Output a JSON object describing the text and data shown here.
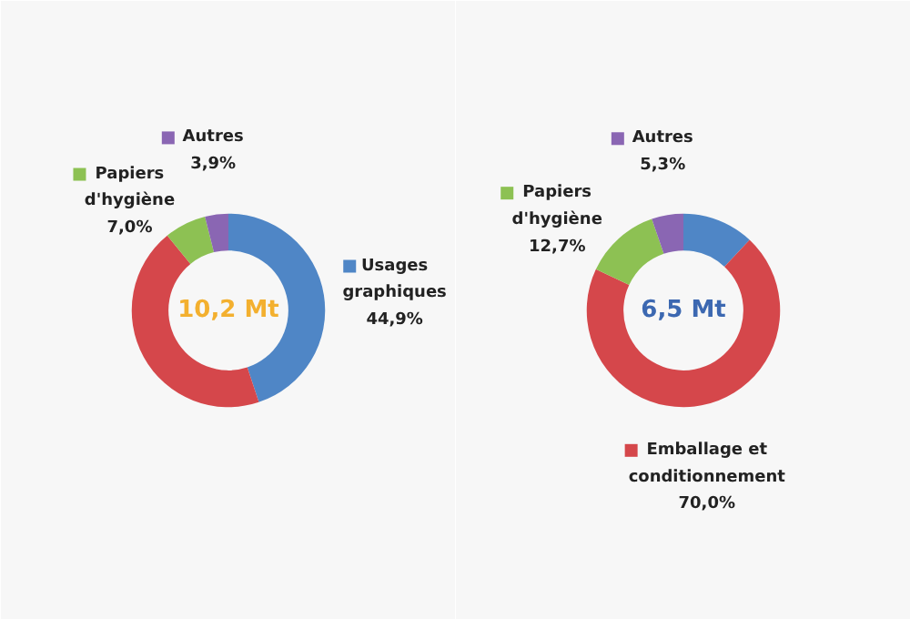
{
  "chart_data": [
    {
      "type": "donut",
      "categories": [
        "Usages graphiques",
        null,
        "Papiers d'hygiène",
        "Autres"
      ],
      "values": [
        44.9,
        44.2,
        7.0,
        3.9
      ],
      "colors": [
        "#4f86c6",
        "#d5474b",
        "#8dc153",
        "#8a66b3"
      ],
      "value_labels": [
        "44,9%",
        null,
        "7,0%",
        "3,9%"
      ],
      "annotations": [
        "10,2 Mt"
      ],
      "legend": "top"
    },
    {
      "type": "donut",
      "categories": [
        null,
        "Emballage et conditionnement",
        "Papiers d'hygiène",
        "Autres"
      ],
      "values": [
        12.0,
        70.0,
        12.7,
        5.3
      ],
      "colors": [
        "#4f86c6",
        "#d5474b",
        "#8dc153",
        "#8a66b3"
      ],
      "value_labels": [
        null,
        "70,0%",
        "12,7%",
        "5,3%"
      ],
      "annotations": [
        "6,5 Mt"
      ],
      "legend": "top"
    }
  ]
}
